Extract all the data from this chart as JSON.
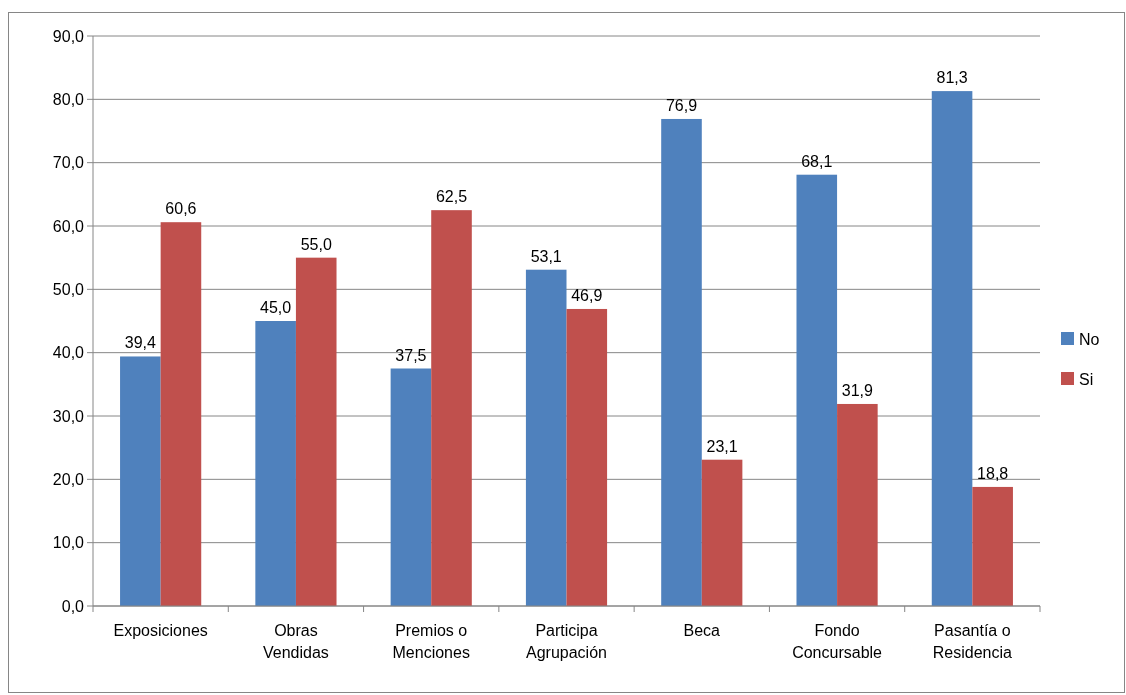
{
  "chart_data": {
    "type": "bar",
    "categories": [
      "Exposiciones",
      "Obras Vendidas",
      "Premios o Menciones",
      "Participa Agrupación",
      "Beca",
      "Fondo Concursable",
      "Pasantía o Residencia"
    ],
    "series": [
      {
        "name": "No",
        "color": "#4f81bd",
        "values": [
          39.4,
          45.0,
          37.5,
          53.1,
          76.9,
          68.1,
          81.3
        ],
        "value_labels": [
          "39,4",
          "45,0",
          "37,5",
          "53,1",
          "76,9",
          "68,1",
          "81,3"
        ]
      },
      {
        "name": "Si",
        "color": "#c0504d",
        "values": [
          60.6,
          55.0,
          62.5,
          46.9,
          23.1,
          31.9,
          18.8
        ],
        "value_labels": [
          "60,6",
          "55,0",
          "62,5",
          "46,9",
          "23,1",
          "31,9",
          "18,8"
        ]
      }
    ],
    "ylim": [
      0,
      90
    ],
    "yticks": [
      {
        "value": 0,
        "label": "0,0"
      },
      {
        "value": 10,
        "label": "10,0"
      },
      {
        "value": 20,
        "label": "20,0"
      },
      {
        "value": 30,
        "label": "30,0"
      },
      {
        "value": 40,
        "label": "40,0"
      },
      {
        "value": 50,
        "label": "50,0"
      },
      {
        "value": 60,
        "label": "60,0"
      },
      {
        "value": 70,
        "label": "70,0"
      },
      {
        "value": 80,
        "label": "80,0"
      },
      {
        "value": 90,
        "label": "90,0"
      }
    ],
    "grid": "y",
    "legend": "right"
  }
}
